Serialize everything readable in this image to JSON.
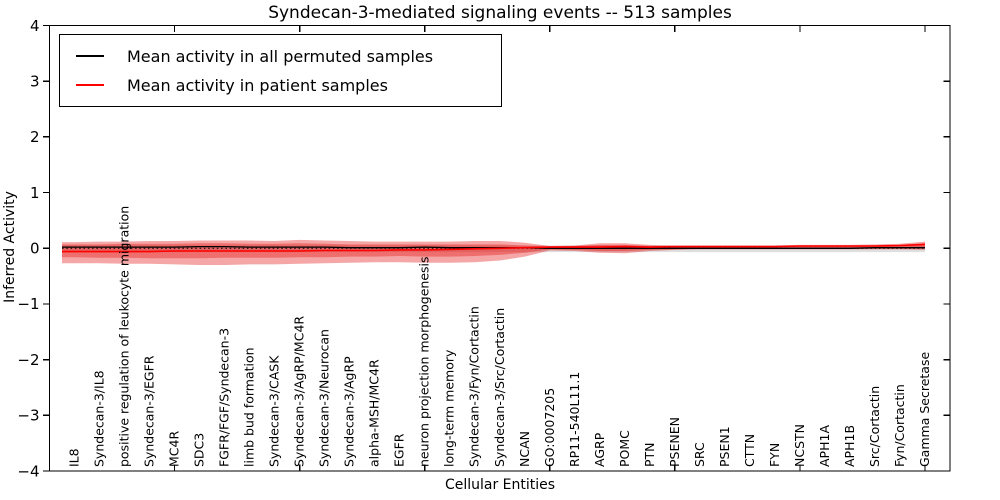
{
  "chart_data": {
    "type": "line",
    "title": "Syndecan-3-mediated signaling events -- 513 samples",
    "xlabel": "Cellular Entities",
    "ylabel": "Inferred Activity",
    "xlim": [
      0,
      36
    ],
    "ylim": [
      -4,
      4
    ],
    "grid": false,
    "legend_position": "upper-left",
    "yticks": {
      "values": [
        -4,
        -3,
        -2,
        -1,
        0,
        1,
        2,
        3,
        4
      ],
      "labels": [
        "−4",
        "−3",
        "−2",
        "−1",
        "0",
        "1",
        "2",
        "3",
        "4"
      ]
    },
    "xticks": {
      "values": [
        5,
        10,
        15,
        20,
        25,
        30,
        35
      ],
      "labels": []
    },
    "zero_line": 0,
    "categories": [
      "IL8",
      "Syndecan-3/IL8",
      "positive regulation of leukocyte migration",
      "Syndecan-3/EGFR",
      "MC4R",
      "SDC3",
      "FGFR/FGF/Syndecan-3",
      "limb bud formation",
      "Syndecan-3/CASK",
      "Syndecan-3/AgRP/MC4R",
      "Syndecan-3/Neurocan",
      "Syndecan-3/AgRP",
      "alpha-MSH/MC4R",
      "EGFR",
      "neuron projection morphogenesis",
      "long-term memory",
      "Syndecan-3/Fyn/Cortactin",
      "Syndecan-3/Src/Cortactin",
      "NCAN",
      "GO:0007205",
      "RP11-540L11.1",
      "AGRP",
      "POMC",
      "PTN",
      "PSENEN",
      "SRC",
      "PSEN1",
      "CTTN",
      "FYN",
      "NCSTN",
      "APH1A",
      "APH1B",
      "Src/Cortactin",
      "Fyn/Cortactin",
      "Gamma Secretase"
    ],
    "series": [
      {
        "name": "Mean activity in all permuted samples",
        "color": "#000000",
        "width": 1.3,
        "values": [
          0.02,
          0.02,
          0.02,
          0.02,
          0.02,
          0.03,
          0.03,
          0.02,
          0.02,
          0.02,
          0.02,
          0.01,
          0.01,
          0.01,
          0.02,
          0.01,
          0.01,
          0.01,
          0.01,
          0,
          0,
          0,
          0,
          0,
          0,
          0,
          0,
          0,
          0,
          0,
          0,
          0,
          0.01,
          0.01,
          0.01
        ]
      },
      {
        "name": "Mean activity in patient samples",
        "color": "#ff0000",
        "width": 1.6,
        "values": [
          -0.06,
          -0.06,
          -0.06,
          -0.06,
          -0.05,
          -0.05,
          -0.05,
          -0.05,
          -0.05,
          -0.05,
          -0.04,
          -0.04,
          -0.04,
          -0.03,
          -0.03,
          -0.02,
          -0.01,
          0,
          0.01,
          0.02,
          0.02,
          0.02,
          0.03,
          0.02,
          0.03,
          0.03,
          0.03,
          0.03,
          0.03,
          0.04,
          0.04,
          0.04,
          0.04,
          0.05,
          0.07
        ]
      }
    ],
    "bands": [
      {
        "name": "permuted-sample-range",
        "color": "rgba(80,80,80,0.18)",
        "upper": [
          0.05,
          0.05,
          0.05,
          0.05,
          0.05,
          0.05,
          0.05,
          0.05,
          0.05,
          0.05,
          0.05,
          0.05,
          0.05,
          0.05,
          0.05,
          0.05,
          0.05,
          0.05,
          0.05,
          0.05,
          0.05,
          0.05,
          0.05,
          0.05,
          0.05,
          0.05,
          0.05,
          0.05,
          0.05,
          0.05,
          0.05,
          0.05,
          0.05,
          0.05,
          0.05
        ],
        "lower": [
          -0.07,
          -0.07,
          -0.07,
          -0.07,
          -0.07,
          -0.07,
          -0.07,
          -0.07,
          -0.07,
          -0.07,
          -0.07,
          -0.07,
          -0.07,
          -0.07,
          -0.07,
          -0.07,
          -0.07,
          -0.07,
          -0.07,
          -0.07,
          -0.07,
          -0.07,
          -0.07,
          -0.07,
          -0.07,
          -0.07,
          -0.07,
          -0.07,
          -0.07,
          -0.07,
          -0.07,
          -0.07,
          -0.07,
          -0.07,
          -0.07
        ]
      },
      {
        "name": "patient-sample-range-outer",
        "color": "rgba(230,20,20,0.38)",
        "upper": [
          0.11,
          0.12,
          0.12,
          0.13,
          0.13,
          0.14,
          0.14,
          0.14,
          0.13,
          0.15,
          0.14,
          0.13,
          0.12,
          0.12,
          0.12,
          0.12,
          0.13,
          0.13,
          0.1,
          0.04,
          0.05,
          0.09,
          0.09,
          0.06,
          0.05,
          0.05,
          0.05,
          0.05,
          0.05,
          0.06,
          0.06,
          0.06,
          0.07,
          0.08,
          0.12
        ],
        "lower": [
          -0.27,
          -0.27,
          -0.28,
          -0.28,
          -0.29,
          -0.3,
          -0.3,
          -0.29,
          -0.29,
          -0.28,
          -0.27,
          -0.26,
          -0.25,
          -0.25,
          -0.26,
          -0.26,
          -0.25,
          -0.22,
          -0.15,
          -0.04,
          -0.05,
          -0.08,
          -0.09,
          -0.05,
          -0.03,
          -0.02,
          -0.02,
          -0.02,
          -0.02,
          -0.02,
          -0.02,
          -0.02,
          -0.02,
          -0.02,
          -0.03
        ]
      },
      {
        "name": "patient-sample-range-inner",
        "color": "rgba(230,20,20,0.38)",
        "upper": [
          0.07,
          0.07,
          0.08,
          0.08,
          0.08,
          0.09,
          0.09,
          0.08,
          0.08,
          0.09,
          0.08,
          0.07,
          0.07,
          0.07,
          0.07,
          0.07,
          0.07,
          0.07,
          0.05,
          0.03,
          0.04,
          0.06,
          0.06,
          0.04,
          0.04,
          0.04,
          0.04,
          0.04,
          0.04,
          0.05,
          0.05,
          0.05,
          0.05,
          0.06,
          0.09
        ],
        "lower": [
          -0.16,
          -0.17,
          -0.17,
          -0.18,
          -0.18,
          -0.18,
          -0.17,
          -0.17,
          -0.17,
          -0.16,
          -0.16,
          -0.15,
          -0.15,
          -0.14,
          -0.15,
          -0.15,
          -0.14,
          -0.12,
          -0.08,
          -0.02,
          -0.03,
          -0.05,
          -0.05,
          -0.03,
          -0.02,
          -0.01,
          -0.01,
          -0.01,
          -0.01,
          -0.01,
          -0.01,
          -0.01,
          -0.01,
          -0.01,
          -0.01
        ]
      }
    ],
    "legend": {
      "entries": [
        {
          "label": "Mean activity in all permuted samples",
          "color": "#000000"
        },
        {
          "label": "Mean activity in patient samples",
          "color": "#ff0000"
        }
      ]
    }
  }
}
